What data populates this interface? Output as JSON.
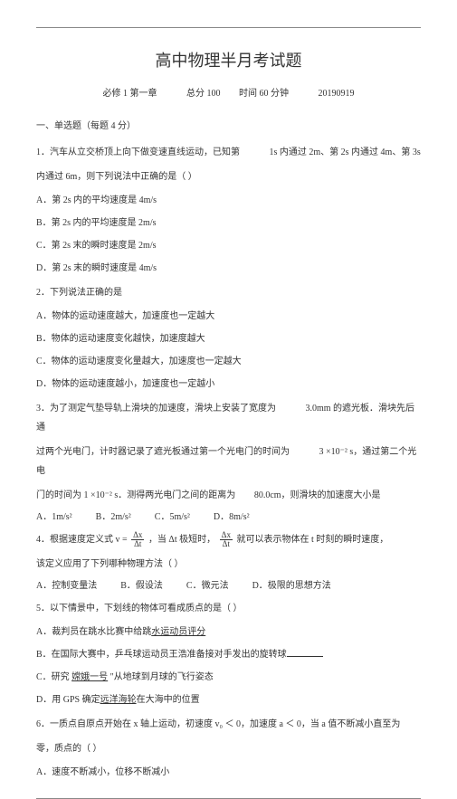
{
  "title": "高中物理半月考试题",
  "subtitle_parts": {
    "a": "必修 1 第一章",
    "b": "总分 100",
    "c": "时间 60 分钟",
    "d": "20190919"
  },
  "section1": "一、单选题（每题   4 分）",
  "q1": {
    "stem_a": "1．汽车从立交桥顶上向下做变速直线运动，已知第",
    "stem_b": "1s 内通过 2m、第 2s 内通过 4m、第 3s",
    "stem_c": "内通过 6m，则下列说法中正确的是（        ）",
    "A": "A．第 2s 内的平均速度是    4m/s",
    "B": "B．第 2s 内的平均速度是    2m/s",
    "C": "C．第 2s 末的瞬时速度是    2m/s",
    "D": "D．第 2s 末的瞬时速度是    4m/s"
  },
  "q2": {
    "stem": "2．下列说法正确的是",
    "A": "A．物体的运动速度越大，加速度也一定越大",
    "B": "B．物体的运动速度变化越快，加速度越大",
    "C": "C．物体的运动速度变化量越大，加速度也一定越大",
    "D": "D．物体的运动速度越小，加速度也一定越小"
  },
  "q3": {
    "stem_a": "3．为了测定气垫导轨上滑块的加速度，滑块上安装了宽度为",
    "stem_b": "3.0mm 的遮光板．滑块先后通",
    "stem_c": "过两个光电门，计时器记录了遮光板通过第一个光电门的时间为",
    "stem_d": "3 ×10⁻² s，通过第二个光电",
    "stem_e": "门的时间为  1 ×10⁻² s．测得两光电门之间的距离为",
    "stem_f": "80.0cm，则滑块的加速度大小是",
    "A": "A．1m/s²",
    "B": "B．2m/s²",
    "C": "C．5m/s²",
    "D": "D．8m/s²"
  },
  "q4": {
    "stem_a": "4．根据速度定义式    v =",
    "num1": "Δx",
    "den1": "Δt",
    "stem_b": "，当  Δt 极短时，",
    "num2": "Δx",
    "den2": "Δt",
    "stem_c": "就可以表示物体在    t 时刻的瞬时速度，",
    "stem_d": "该定义应用了下列哪种物理方法（          ）",
    "A": "A．控制变量法",
    "B": "B．假设法",
    "C": "C．微元法",
    "D": "D．极限的思想方法"
  },
  "q5": {
    "stem": "5．以下情景中，下划线的物体可看成质点的是（              ）",
    "A_a": "A．裁判员在跳水比赛中给跳",
    "A_u": "水运动员评分",
    "B_a": "B．在国际大赛中，乒乓球运动员王浩准备接对手发出的旋转球",
    "C_a": "C．研究",
    "C_u": "嫦娥一号",
    "C_b": "\"从地球到月球的飞行姿态",
    "D_a": "D．用 GPS 确定",
    "D_u": "远洋海轮",
    "D_b": "在大海中的位置"
  },
  "q6": {
    "stem_a": "6．一质点自原点开始在     x 轴上运动，初速度    v₀ ＜ 0，加速度   a ＜ 0，当 a 值不断减小直至为",
    "stem_b": "零，质点的（        ）",
    "A": "A．速度不断减小，位移不断减小"
  }
}
